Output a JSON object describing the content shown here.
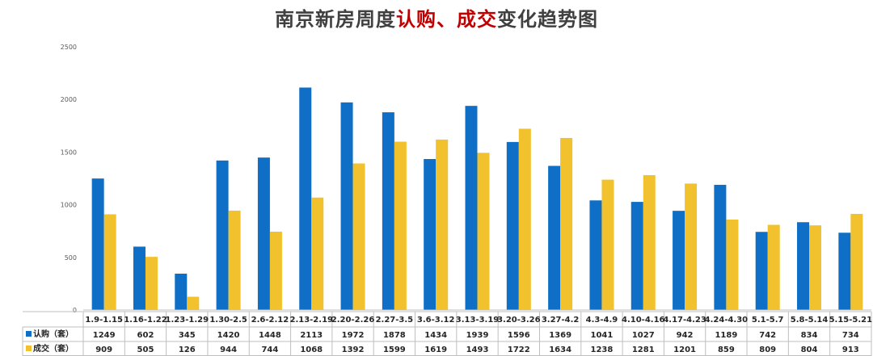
{
  "title": {
    "part1": "南京新房周度",
    "part2": "认购、成交",
    "part3": "变化趋势图"
  },
  "colors": {
    "series1": "#0f6fc6",
    "series2": "#f2c12e",
    "title_highlight": "#c00000"
  },
  "chart_data": {
    "type": "bar",
    "title": "南京新房周度认购、成交变化趋势图",
    "xlabel": "",
    "ylabel": "",
    "ylim": [
      0,
      2500
    ],
    "yticks": [
      0,
      500,
      1000,
      1500,
      2000,
      2500
    ],
    "grid": false,
    "legend": "data-table",
    "categories": [
      "1.9-1.15",
      "1.16-1.22",
      "1.23-1.29",
      "1.30-2.5",
      "2.6-2.12",
      "2.13-2.19",
      "2.20-2.26",
      "2.27-3.5",
      "3.6-3.12",
      "3.13-3.19",
      "3.20-3.26",
      "3.27-4.2",
      "4.3-4.9",
      "4.10-4.16",
      "4.17-4.23",
      "4.24-4.30",
      "5.1-5.7",
      "5.8-5.14",
      "5.15-5.21"
    ],
    "series": [
      {
        "name": "认购（套）",
        "values": [
          1249,
          602,
          345,
          1420,
          1448,
          2113,
          1972,
          1878,
          1434,
          1939,
          1596,
          1369,
          1041,
          1027,
          942,
          1189,
          742,
          834,
          734
        ]
      },
      {
        "name": "成交（套）",
        "values": [
          909,
          505,
          126,
          944,
          744,
          1068,
          1392,
          1599,
          1619,
          1493,
          1722,
          1634,
          1238,
          1281,
          1201,
          859,
          809,
          804,
          913
        ]
      }
    ]
  }
}
